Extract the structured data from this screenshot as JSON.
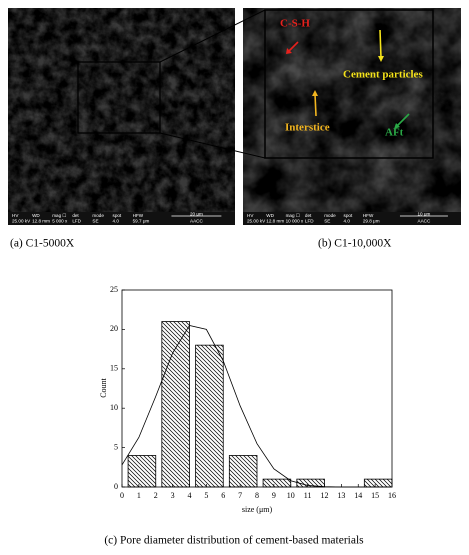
{
  "panels": [
    {
      "info_bar": {
        "headers": [
          "HV",
          "WD",
          "mag ☐",
          "det",
          "mode",
          "spot",
          "HFW"
        ],
        "values": [
          "25.00 kV",
          "12.8 mm",
          "5 000 x",
          "LFD",
          "SE",
          "4.0",
          "59.7 μm"
        ],
        "scale": "20 μm",
        "lab": "AACC"
      },
      "caption": "(a) C1-5000X"
    },
    {
      "info_bar": {
        "headers": [
          "HV",
          "WD",
          "mag ☐",
          "det",
          "mode",
          "spot",
          "HFW"
        ],
        "values": [
          "25.00 kV",
          "12.8 mm",
          "10 000 x",
          "LFD",
          "SE",
          "4.0",
          "29.8 μm"
        ],
        "scale": "10 μm",
        "lab": "AACC"
      },
      "annotations": [
        {
          "text": "C-S-H",
          "color": "#e8211d"
        },
        {
          "text": "Cement particles",
          "color": "#f5e31a"
        },
        {
          "text": "Interstice",
          "color": "#f2b51f"
        },
        {
          "text": "AFt",
          "color": "#2aa846"
        }
      ],
      "caption": "(b) C1-10,000X"
    }
  ],
  "chart_data": {
    "type": "histogram",
    "bins": [
      0,
      2,
      4,
      6,
      8,
      10,
      12,
      14,
      16
    ],
    "values": [
      4,
      21,
      18,
      4,
      1,
      1,
      0,
      1
    ],
    "curve": {
      "x": [
        0,
        1,
        2,
        3,
        4,
        5,
        6,
        7,
        8,
        9,
        10,
        11,
        12,
        13,
        14,
        15,
        16
      ],
      "values": [
        2.8,
        6.3,
        11.5,
        17.0,
        20.5,
        20.0,
        16.0,
        10.3,
        5.5,
        2.3,
        0.8,
        0.2,
        0.05,
        0,
        0,
        0,
        0
      ]
    },
    "xlim": [
      0,
      16
    ],
    "ylim": [
      0,
      25
    ],
    "xticks": [
      0,
      1,
      2,
      3,
      4,
      5,
      6,
      7,
      8,
      9,
      10,
      11,
      12,
      13,
      14,
      15,
      16
    ],
    "yticks": [
      0,
      5,
      10,
      15,
      20,
      25
    ],
    "xlabel": "size (μm)",
    "ylabel": "Count",
    "caption": "(c) Pore diameter distribution of cement-based materials"
  }
}
